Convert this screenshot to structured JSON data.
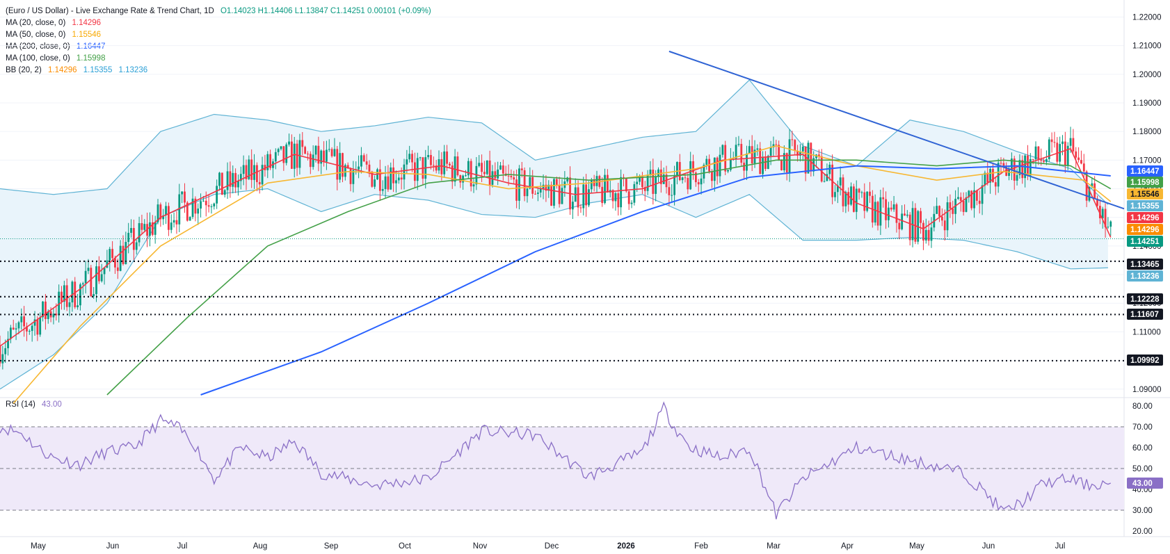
{
  "legend": {
    "main": "(Euro / US Dollar) - Live Exchange Rate & Trend Chart, 1D",
    "ohlc": "O1.14023  H1.14406  L1.13847  C1.14251  0.00101 (+0.09%)",
    "ma20_label": "MA (20, close, 0)",
    "ma20_value": "1.14296",
    "ma50_label": "MA (50, close, 0)",
    "ma50_value": "1.15546",
    "ma200_label": "MA (200, close, 0)",
    "ma200_value": "1.16447",
    "ma100_label": "MA (100, close, 0)",
    "ma100_value": "1.15998",
    "bb_label": "BB (20, 2)",
    "bb_basis": "1.14296",
    "bb_upper": "1.15355",
    "bb_lower": "1.13236",
    "rsi_label": "RSI (14)",
    "rsi_value": "43.00"
  },
  "colors": {
    "up": "#089981",
    "down": "#f23645",
    "ma20": "#f23645",
    "ma50": "#f7b731",
    "ma100": "#43a047",
    "ma200": "#2962ff",
    "bb": "#5fb3d4",
    "bb_fill": "#e9f4fb",
    "trend": "#2f63d4",
    "rsi": "#8a6fc6",
    "rsi_fill": "#efe9f9",
    "level": "#131722"
  },
  "chart_data": [
    {
      "type": "line",
      "title": "(Euro / US Dollar) - Live Exchange Rate & Trend Chart, 1D",
      "ylim": [
        1.088,
        1.224
      ],
      "y_ticks": [
        "1.22000",
        "1.21000",
        "1.20000",
        "1.19000",
        "1.18000",
        "1.17000",
        "1.16000",
        "1.15000",
        "1.14000",
        "1.13000",
        "1.12000",
        "1.11000",
        "1.10000",
        "1.09000"
      ],
      "x_ticks": [
        "May",
        "Jun",
        "Jul",
        "Aug",
        "Sep",
        "Oct",
        "Nov",
        "Dec",
        "2026",
        "Feb",
        "Mar",
        "Apr",
        "May",
        "Jun",
        "Jul"
      ],
      "series": [
        {
          "name": "MA (20, close, 0)",
          "x": [
            0,
            30,
            60,
            110,
            140,
            165,
            190,
            215,
            240,
            270,
            300,
            320,
            345,
            375,
            400,
            415
          ],
          "values": [
            1.105,
            1.125,
            1.15,
            1.172,
            1.165,
            1.168,
            1.162,
            1.158,
            1.16,
            1.17,
            1.172,
            1.155,
            1.146,
            1.166,
            1.174,
            1.143
          ]
        },
        {
          "name": "MA (50, close, 0)",
          "x": [
            5,
            30,
            60,
            100,
            130,
            160,
            190,
            220,
            260,
            290,
            320,
            350,
            375,
            405,
            415
          ],
          "values": [
            1.085,
            1.112,
            1.14,
            1.162,
            1.166,
            1.165,
            1.16,
            1.162,
            1.167,
            1.175,
            1.168,
            1.163,
            1.166,
            1.163,
            1.1555
          ]
        },
        {
          "name": "MA (100, close, 0)",
          "x": [
            40,
            70,
            100,
            130,
            160,
            190,
            220,
            260,
            290,
            320,
            350,
            375,
            400,
            415
          ],
          "values": [
            1.088,
            1.115,
            1.14,
            1.152,
            1.162,
            1.165,
            1.163,
            1.165,
            1.17,
            1.17,
            1.168,
            1.17,
            1.168,
            1.16
          ]
        },
        {
          "name": "MA (200, close, 0)",
          "x": [
            75,
            120,
            160,
            200,
            240,
            280,
            320,
            350,
            380,
            415
          ],
          "values": [
            1.088,
            1.103,
            1.12,
            1.138,
            1.152,
            1.164,
            1.168,
            1.167,
            1.168,
            1.1645
          ]
        }
      ],
      "trendline": {
        "x": [
          250,
          420
        ],
        "values": [
          1.208,
          1.153
        ]
      },
      "bollinger": {
        "x": [
          0,
          20,
          40,
          60,
          80,
          100,
          120,
          140,
          160,
          180,
          200,
          220,
          240,
          260,
          280,
          300,
          320,
          340,
          360,
          380,
          400,
          415
        ],
        "upper": [
          1.16,
          1.158,
          1.16,
          1.18,
          1.186,
          1.184,
          1.18,
          1.182,
          1.185,
          1.183,
          1.17,
          1.174,
          1.178,
          1.18,
          1.198,
          1.175,
          1.168,
          1.184,
          1.18,
          1.173,
          1.167,
          1.1536
        ],
        "lower": [
          1.09,
          1.102,
          1.12,
          1.15,
          1.158,
          1.16,
          1.152,
          1.158,
          1.156,
          1.151,
          1.15,
          1.155,
          1.158,
          1.15,
          1.158,
          1.142,
          1.142,
          1.143,
          1.142,
          1.138,
          1.132,
          1.1324
        ]
      },
      "levels": [
        1.13465,
        1.12228,
        1.11607,
        1.09992
      ],
      "price_labels": [
        {
          "value": "1.16447",
          "color": "#2962ff"
        },
        {
          "value": "1.15998",
          "color": "#43a047"
        },
        {
          "value": "1.15546",
          "color": "#f7b731"
        },
        {
          "value": "1.15355",
          "color": "#5fb3d4"
        },
        {
          "value": "1.14296",
          "color": "#f23645"
        },
        {
          "value": "1.14296",
          "color": "#fb8c00"
        },
        {
          "value": "1.14251",
          "color": "#089981"
        },
        {
          "value": "1.13465",
          "color": "#131722"
        },
        {
          "value": "1.13236",
          "color": "#5fb3d4"
        },
        {
          "value": "1.12228",
          "color": "#131722"
        },
        {
          "value": "1.11607",
          "color": "#131722"
        },
        {
          "value": "1.09992",
          "color": "#131722"
        }
      ],
      "last_close": 1.14251
    },
    {
      "type": "line",
      "title": "RSI (14)",
      "ylim": [
        18,
        82
      ],
      "y_ticks": [
        "80.00",
        "70.00",
        "60.00",
        "50.00",
        "40.00",
        "30.00",
        "20.00"
      ],
      "bands": [
        30,
        50,
        70
      ],
      "series": [
        {
          "name": "RSI (14)",
          "x": [
            0,
            8,
            14,
            20,
            30,
            40,
            50,
            60,
            66,
            72,
            80,
            90,
            100,
            110,
            120,
            140,
            160,
            180,
            200,
            220,
            240,
            248,
            252,
            258,
            270,
            280,
            290,
            300,
            320,
            340,
            360,
            370,
            375,
            382,
            390,
            400,
            406,
            415
          ],
          "values": [
            70,
            67,
            60,
            55,
            52,
            58,
            60,
            73,
            70,
            63,
            45,
            60,
            55,
            63,
            48,
            42,
            45,
            68,
            66,
            46,
            58,
            79,
            70,
            60,
            55,
            60,
            28,
            45,
            60,
            54,
            48,
            36,
            29,
            34,
            43,
            45,
            42,
            43
          ]
        }
      ],
      "last_value": "43.00"
    }
  ]
}
